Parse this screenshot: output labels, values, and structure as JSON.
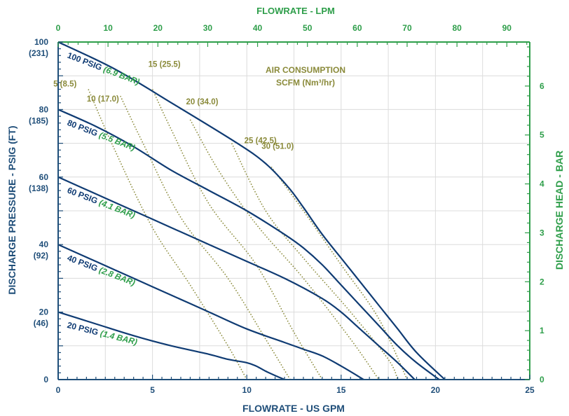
{
  "chart_data": {
    "type": "line",
    "title": "",
    "axes": {
      "x_bottom": {
        "label": "FLOWRATE - US GPM",
        "min": 0,
        "max": 25,
        "ticks": [
          0,
          5,
          10,
          15,
          20,
          25
        ],
        "tick_labels": [
          "0",
          "5",
          "10",
          "15",
          "20",
          "25"
        ]
      },
      "x_top": {
        "label": "FLOWRATE - LPM",
        "min": 0,
        "max": 94.6,
        "ticks": [
          0,
          10,
          20,
          30,
          40,
          50,
          60,
          70,
          80,
          90
        ],
        "tick_labels": [
          "0",
          "10",
          "20",
          "30",
          "40",
          "50",
          "60",
          "70",
          "80",
          "90"
        ]
      },
      "y_left": {
        "label": "DISCHARGE PRESSURE - PSIG (FT)",
        "min": 0,
        "max": 100,
        "ticks": [
          0,
          20,
          40,
          60,
          80,
          100
        ],
        "tick_labels": [
          "0",
          "20",
          "40",
          "60",
          "80",
          "100"
        ],
        "tick_sublabels": [
          "",
          "(46)",
          "(92)",
          "(138)",
          "(185)",
          "(231)"
        ]
      },
      "y_right": {
        "label": "DISCHARGE HEAD - BAR",
        "min": 0,
        "max": 6.9,
        "ticks": [
          0,
          1,
          2,
          3,
          4,
          5,
          6
        ],
        "tick_labels": [
          "0",
          "1",
          "2",
          "3",
          "4",
          "5",
          "6"
        ]
      }
    },
    "grid": true,
    "air_consumption_title": [
      "AIR CONSUMPTION",
      "SCFM (Nm³/hr)"
    ],
    "series": [
      {
        "label_psig": "100 PSIG",
        "label_bar": "(6.9 BAR)",
        "x": [
          0,
          3,
          6,
          9.5,
          11,
          12.2,
          13,
          14,
          15,
          16,
          17,
          18,
          19,
          20.5
        ],
        "y": [
          100,
          92,
          82,
          70,
          64,
          57,
          51,
          43,
          36,
          29,
          22,
          15,
          8,
          0
        ]
      },
      {
        "label_psig": "80 PSIG",
        "label_bar": "(5.5 BAR)",
        "x": [
          0,
          2,
          4,
          6,
          8,
          10,
          12,
          13,
          14,
          15,
          16,
          17,
          18,
          19,
          20.2
        ],
        "y": [
          80,
          75,
          69,
          62,
          56,
          50,
          43,
          39,
          34,
          28,
          22,
          16,
          10,
          5,
          0
        ]
      },
      {
        "label_psig": "60 PSIG",
        "label_bar": "(4.1 BAR)",
        "x": [
          0,
          2,
          4,
          6,
          8,
          10,
          12,
          14,
          15,
          16,
          17,
          18,
          18.9
        ],
        "y": [
          60,
          55,
          50,
          45,
          40,
          35,
          30,
          24,
          20,
          15,
          10,
          5,
          0
        ]
      },
      {
        "label_psig": "40 PSIG",
        "label_bar": "(2.8 BAR)",
        "x": [
          0,
          2,
          4,
          6,
          8,
          10,
          12,
          13,
          14,
          15,
          16.2
        ],
        "y": [
          40,
          35,
          30,
          25,
          20,
          15,
          11,
          9,
          7,
          4,
          0
        ]
      },
      {
        "label_psig": "20 PSIG",
        "label_bar": "(1.4 BAR)",
        "x": [
          0,
          2,
          4,
          6,
          8,
          9,
          10,
          10.5,
          11,
          11.5,
          12
        ],
        "y": [
          20,
          16.5,
          13,
          10,
          7.5,
          6,
          5,
          4,
          2.5,
          1.2,
          0
        ]
      }
    ],
    "air_consumption_lines": [
      {
        "label": "5 (8.5)",
        "x": [
          1.6,
          3,
          5,
          7,
          9,
          10
        ],
        "y": [
          86,
          68,
          45,
          28,
          10,
          0
        ]
      },
      {
        "label": "10 (17.0)",
        "x": [
          3.3,
          4.5,
          6.5,
          9,
          11,
          12.3
        ],
        "y": [
          84,
          70,
          48,
          30,
          12,
          0
        ]
      },
      {
        "label": "15 (25.5)",
        "x": [
          5,
          6,
          8,
          10.5,
          12.5,
          14
        ],
        "y": [
          86,
          74,
          52,
          34,
          14,
          0
        ]
      },
      {
        "label": "20 (34.0)",
        "x": [
          7,
          8.5,
          10.5,
          13,
          15.5,
          17
        ],
        "y": [
          77,
          62,
          46,
          30,
          12,
          0
        ]
      },
      {
        "label": "25 (42.5)",
        "x": [
          9.2,
          11,
          13,
          15.5,
          17.5,
          18
        ],
        "y": [
          70,
          50,
          36,
          20,
          6,
          0
        ]
      },
      {
        "label": "30 (51.0)",
        "x": [
          11.3,
          13,
          15,
          17,
          18.5
        ],
        "y": [
          63,
          50,
          34,
          18,
          0
        ]
      }
    ]
  }
}
